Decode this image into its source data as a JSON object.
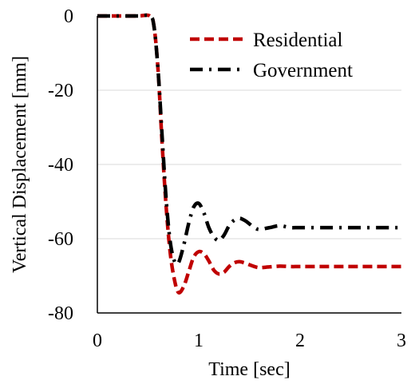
{
  "chart_data": {
    "type": "line",
    "title": "",
    "xlabel": "Time [sec]",
    "ylabel": "Vertical Displacement [mm]",
    "xlim": [
      0,
      3
    ],
    "ylim": [
      -80,
      0
    ],
    "xticks": [
      0,
      1,
      2,
      3
    ],
    "yticks": [
      0,
      -20,
      -40,
      -60,
      -80
    ],
    "xtick_labels": [
      "0",
      "1",
      "2",
      "3"
    ],
    "ytick_labels": [
      "0",
      "-20",
      "-40",
      "-60",
      "-80"
    ],
    "grid": "horizontal",
    "legend_position": "top-right",
    "series": [
      {
        "name": "Residential",
        "color": "#c00000",
        "style": "dashed",
        "x": [
          0,
          0.2,
          0.4,
          0.52,
          0.56,
          0.6,
          0.64,
          0.68,
          0.72,
          0.76,
          0.8,
          0.85,
          0.9,
          0.95,
          1.0,
          1.05,
          1.1,
          1.15,
          1.2,
          1.25,
          1.3,
          1.35,
          1.4,
          1.45,
          1.5,
          1.55,
          1.6,
          1.7,
          1.8,
          1.9,
          2.0,
          2.2,
          2.5,
          3.0
        ],
        "y": [
          0,
          0,
          0,
          0,
          -3,
          -15,
          -35,
          -52,
          -64,
          -71,
          -74.5,
          -73,
          -69,
          -65,
          -63.5,
          -64,
          -66,
          -68.5,
          -69.5,
          -69,
          -67.5,
          -66.5,
          -66.2,
          -66.5,
          -67,
          -67.5,
          -67.8,
          -67.6,
          -67.4,
          -67.5,
          -67.5,
          -67.5,
          -67.5,
          -67.5
        ]
      },
      {
        "name": "Government",
        "color": "#000000",
        "style": "dash-dot",
        "x": [
          0,
          0.2,
          0.4,
          0.52,
          0.56,
          0.6,
          0.64,
          0.68,
          0.72,
          0.76,
          0.8,
          0.85,
          0.9,
          0.95,
          1.0,
          1.05,
          1.1,
          1.15,
          1.2,
          1.25,
          1.3,
          1.35,
          1.4,
          1.45,
          1.5,
          1.55,
          1.6,
          1.7,
          1.8,
          1.9,
          2.0,
          2.2,
          2.5,
          3.0
        ],
        "y": [
          0,
          0,
          0,
          0,
          -3,
          -15,
          -33,
          -50,
          -61,
          -66,
          -66.5,
          -62,
          -56,
          -51.5,
          -50.5,
          -53,
          -57,
          -59.5,
          -60.5,
          -59,
          -56.5,
          -55,
          -54.5,
          -55,
          -56,
          -57,
          -57.5,
          -57,
          -56.5,
          -57,
          -57,
          -57,
          -57,
          -57
        ]
      }
    ]
  }
}
